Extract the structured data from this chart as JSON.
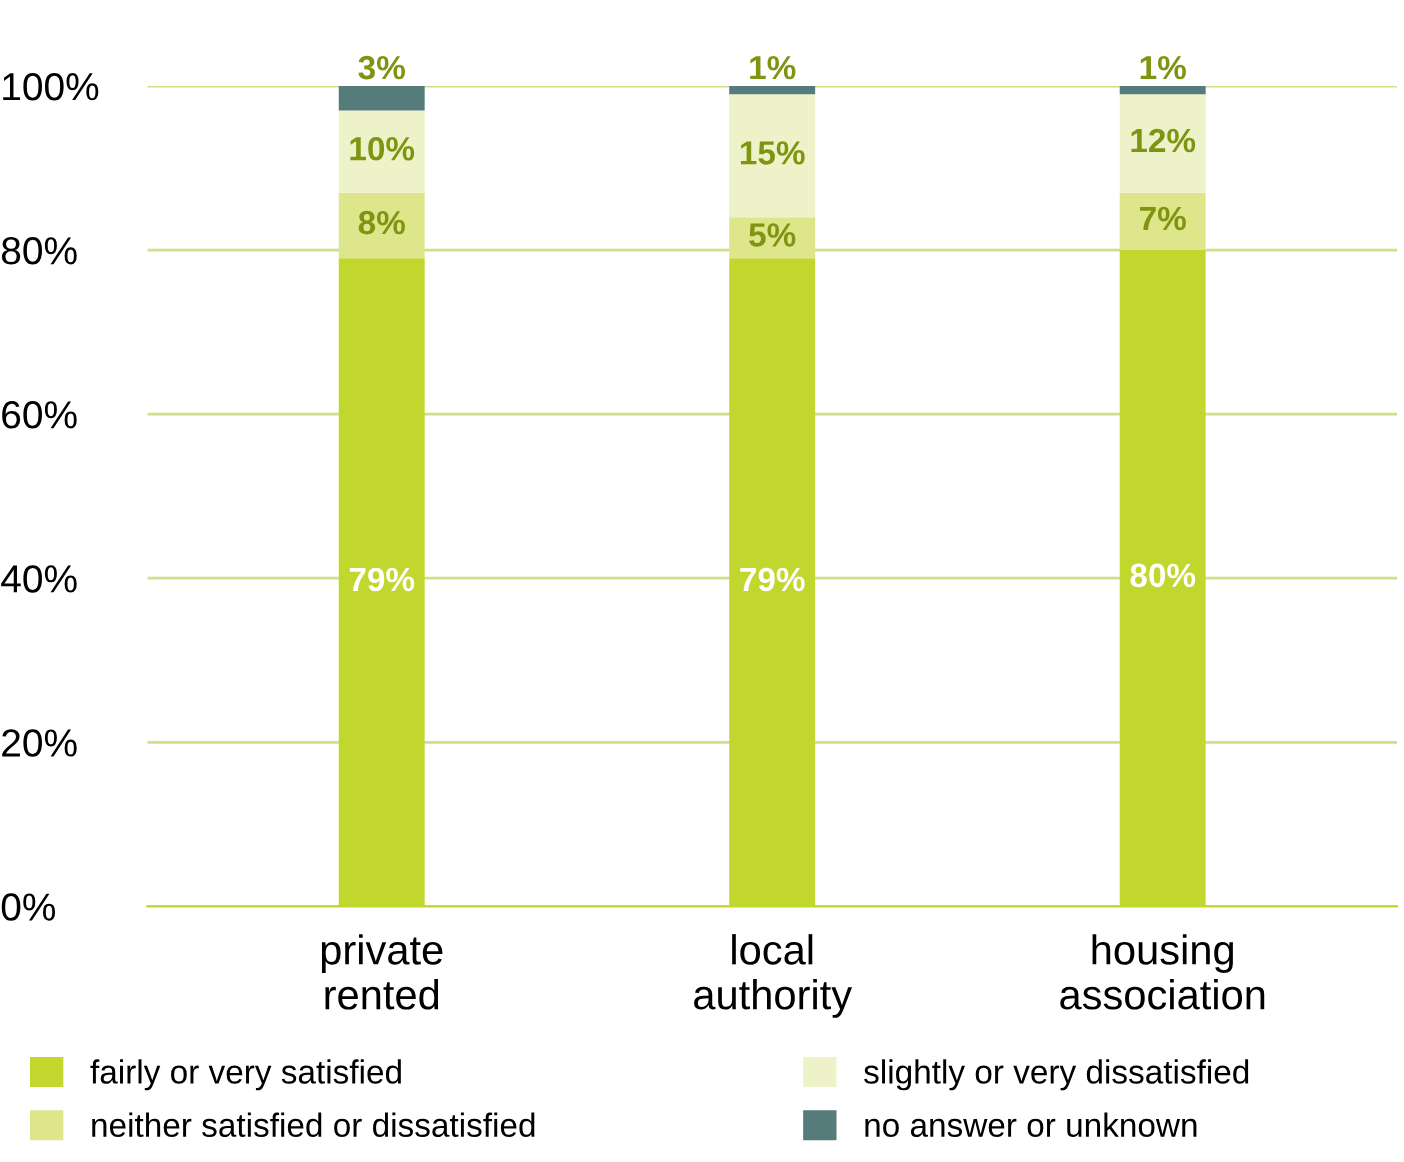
{
  "chart_data": {
    "type": "bar",
    "stacked": true,
    "grid": "y",
    "legend": "bottom",
    "categories": [
      "private\nrented",
      "local\nauthority",
      "housing\nassociation"
    ],
    "series": [
      {
        "name": "fairly or very satisfied",
        "color": "#c2d72e",
        "values": [
          79,
          79,
          80
        ],
        "value_labels": [
          "79%",
          "79%",
          "80%"
        ]
      },
      {
        "name": "neither satisfied or dissatisfied",
        "color": "#dde68a",
        "values": [
          8,
          5,
          7
        ],
        "value_labels": [
          "8%",
          "5%",
          "7%"
        ]
      },
      {
        "name": "slightly or very dissatisfied",
        "color": "#eef2c8",
        "values": [
          10,
          15,
          12
        ],
        "value_labels": [
          "10%",
          "15%",
          "12%"
        ]
      },
      {
        "name": "no answer or unknown",
        "color": "#557b7a",
        "values": [
          3,
          1,
          1
        ],
        "value_labels": [
          "3%",
          "1%",
          "1%"
        ]
      }
    ],
    "ylim": [
      0,
      100
    ],
    "yticks": [
      {
        "value": 0,
        "label": "0%"
      },
      {
        "value": 20,
        "label": "20%"
      },
      {
        "value": 40,
        "label": "40%"
      },
      {
        "value": 60,
        "label": "60%"
      },
      {
        "value": 80,
        "label": "80%"
      },
      {
        "value": 100,
        "label": "100%"
      }
    ]
  }
}
